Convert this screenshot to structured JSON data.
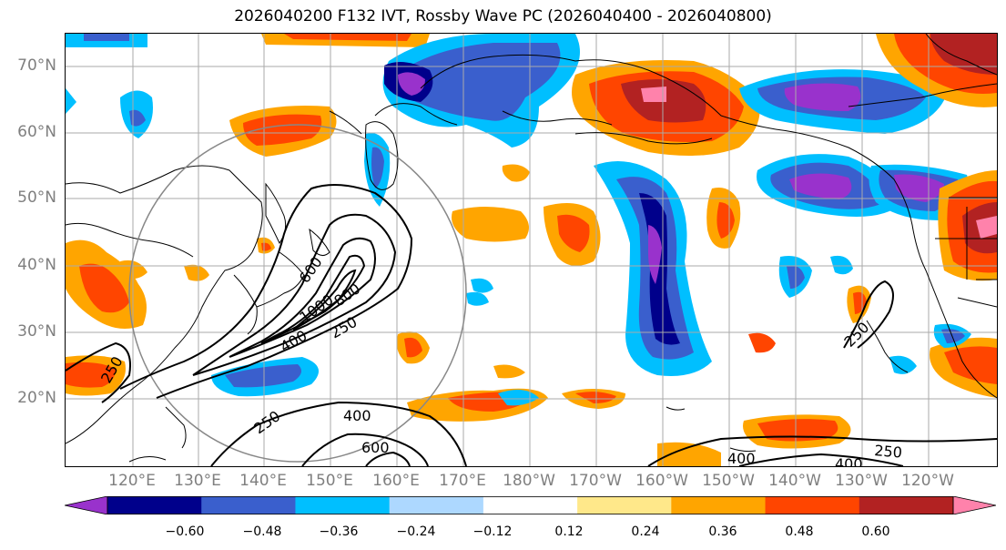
{
  "title": "2026040200 F132 IVT, Rossby Wave PC (2026040400 - 2026040800)",
  "lat_labels": [
    "70°N",
    "60°N",
    "50°N",
    "40°N",
    "30°N",
    "20°N"
  ],
  "lon_labels": [
    "120°E",
    "130°E",
    "140°E",
    "150°E",
    "160°E",
    "170°E",
    "180°W",
    "170°W",
    "160°W",
    "150°W",
    "140°W",
    "130°W",
    "120°W"
  ],
  "colorbar": {
    "ticks": [
      "−0.60",
      "−0.48",
      "−0.36",
      "−0.24",
      "−0.12",
      "0.12",
      "0.24",
      "0.36",
      "0.48",
      "0.60"
    ],
    "colors": [
      "#9932cc",
      "#00008b",
      "#3a5fcd",
      "#00bfff",
      "#add8ff",
      "#ffffff",
      "#ffe88a",
      "#ffa500",
      "#ff4500",
      "#b22222",
      "#ff82ab"
    ]
  },
  "contour_labels": [
    "250",
    "400",
    "600",
    "800",
    "1000",
    "250",
    "400",
    "600",
    "250",
    "400",
    "400",
    "250",
    "250",
    "250"
  ]
}
